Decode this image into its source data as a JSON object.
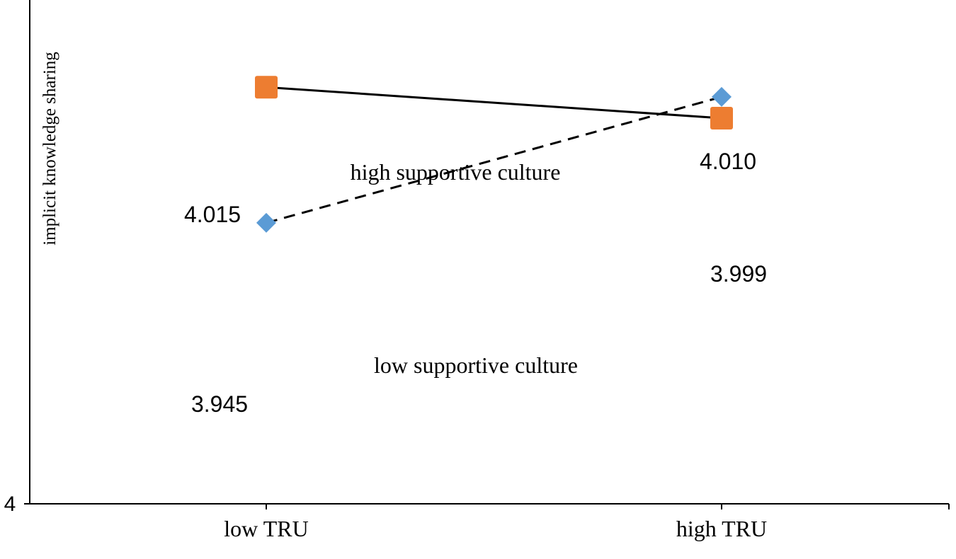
{
  "chart_data": {
    "type": "line",
    "categories": [
      "low TRU",
      "high TRU"
    ],
    "series": [
      {
        "name": "high supportive culture",
        "values": [
          4.015,
          3.999
        ],
        "value_labels": [
          "4.015",
          "3.999"
        ],
        "color": "#ED7D31",
        "marker": "square-icon",
        "line_style": "solid"
      },
      {
        "name": "low supportive culture",
        "values": [
          3.945,
          4.01
        ],
        "value_labels": [
          "3.945",
          "4.010"
        ],
        "color": "#5B9BD5",
        "marker": "diamond-icon",
        "line_style": "dashed"
      }
    ],
    "ylabel": "implicit knowledge sharing",
    "y_tick_label": "4",
    "ylim": [
      3.8,
      4.06
    ],
    "grid": false,
    "legend": "inline labels"
  }
}
